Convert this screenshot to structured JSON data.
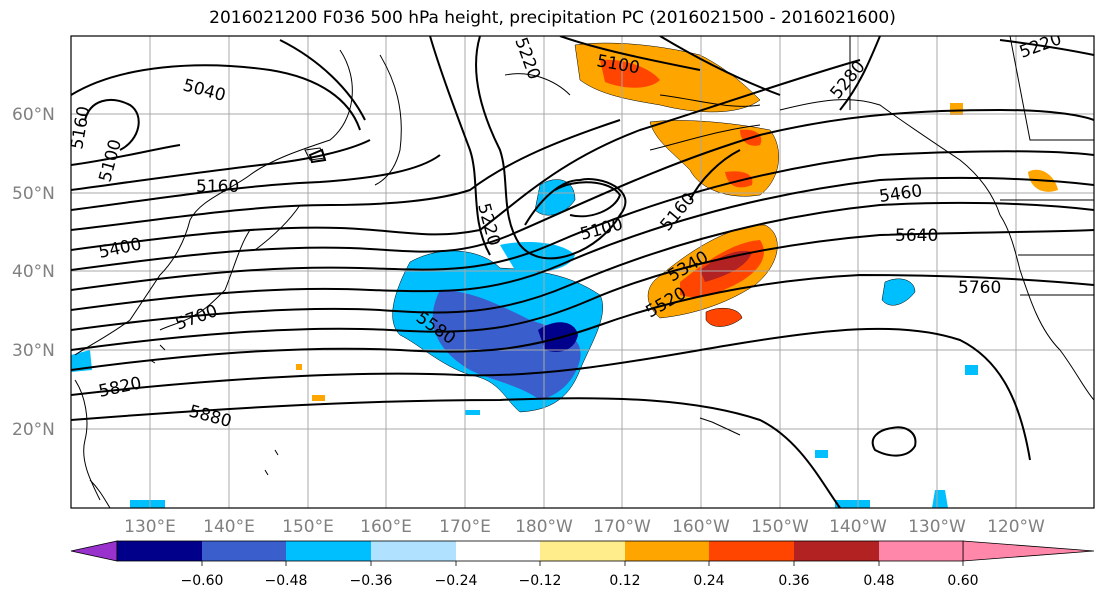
{
  "title": "2016021200 F036 500 hPa height, precipitation PC (2016021500 - 2016021600)",
  "lon_labels": [
    "130°E",
    "140°E",
    "150°E",
    "160°E",
    "170°E",
    "180°W",
    "170°W",
    "160°W",
    "150°W",
    "140°W",
    "130°W",
    "120°W"
  ],
  "lat_labels": [
    "60°N",
    "50°N",
    "40°N",
    "30°N",
    "20°N"
  ],
  "contour_labels": [
    "5040",
    "5160",
    "5100",
    "5160",
    "5400",
    "5220",
    "5100",
    "5160",
    "5220",
    "5100",
    "5280",
    "5220",
    "5460",
    "5640",
    "5760",
    "5340",
    "5520",
    "5580",
    "5700",
    "5820",
    "5880"
  ],
  "colorbar": {
    "colors": [
      "#9932cc",
      "#00008b",
      "#3a5fcd",
      "#00bfff",
      "#b0e2ff",
      "#ffffff",
      "#ffec8b",
      "#ffa500",
      "#ff4500",
      "#b22222",
      "#ff88aa"
    ],
    "labels": [
      "−0.60",
      "−0.48",
      "−0.36",
      "−0.24",
      "−0.12",
      "0.12",
      "0.24",
      "0.36",
      "0.48",
      "0.60"
    ]
  }
}
